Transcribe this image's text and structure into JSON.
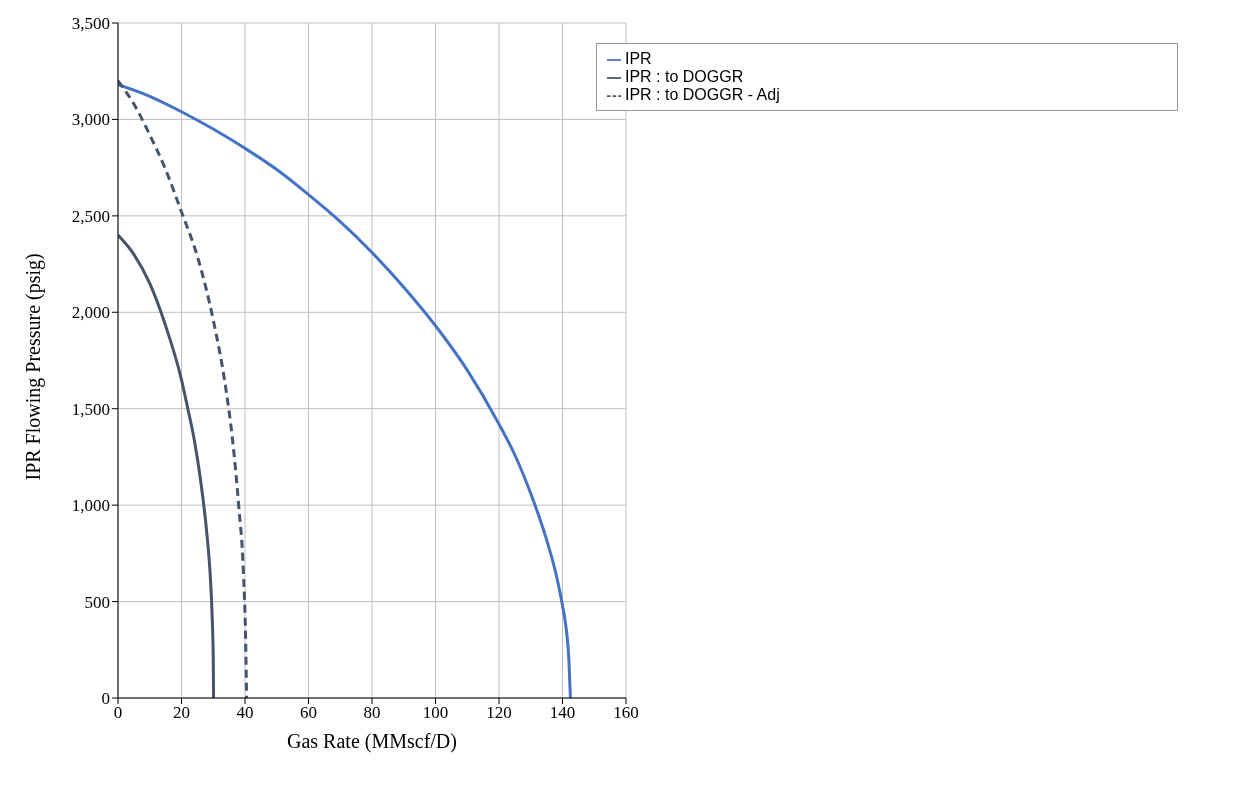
{
  "chart_data": {
    "type": "line",
    "xlabel": "Gas Rate (MMscf/D)",
    "ylabel": "IPR Flowing Pressure (psig)",
    "xlim": [
      0,
      160
    ],
    "xticks": [
      0,
      20,
      40,
      60,
      80,
      100,
      120,
      140,
      160
    ],
    "ylim": [
      0,
      3500
    ],
    "yticks": [
      {
        "value": 0,
        "label": "0"
      },
      {
        "value": 500,
        "label": "500"
      },
      {
        "value": 1000,
        "label": "1,000"
      },
      {
        "value": 1500,
        "label": "1,500"
      },
      {
        "value": 2000,
        "label": "2,000"
      },
      {
        "value": 2500,
        "label": "2,500"
      },
      {
        "value": 3000,
        "label": "3,000"
      },
      {
        "value": 3500,
        "label": "3,500"
      }
    ],
    "grid": true,
    "legend": "top right",
    "marker": "none",
    "series": [
      {
        "name": "IPR",
        "color": "#4472c4",
        "line_style": "solid",
        "x": [
          0,
          10,
          20,
          30,
          40,
          50,
          60,
          70,
          80,
          90,
          100,
          110,
          120,
          125,
          130,
          135,
          138,
          140,
          141,
          142,
          142.5
        ],
        "values": [
          3180,
          3120,
          3040,
          2950,
          2850,
          2740,
          2610,
          2470,
          2310,
          2130,
          1930,
          1700,
          1420,
          1260,
          1060,
          820,
          640,
          480,
          380,
          200,
          0
        ]
      },
      {
        "name": "IPR : to DOGGR",
        "color": "#44546a",
        "line_style": "solid",
        "x": [
          0,
          5,
          10,
          15,
          20,
          22,
          24,
          26,
          28,
          29,
          29.7,
          30,
          30.1
        ],
        "values": [
          2400,
          2300,
          2150,
          1930,
          1650,
          1500,
          1340,
          1130,
          850,
          650,
          400,
          200,
          0
        ]
      },
      {
        "name": "IPR : to DOGGR - Adj",
        "color": "#44546a",
        "line_style": "dashed",
        "x": [
          0,
          5,
          10,
          15,
          20,
          25,
          30,
          34,
          36,
          38,
          39.5,
          40.2,
          40.5
        ],
        "values": [
          3200,
          3080,
          2920,
          2740,
          2520,
          2290,
          1960,
          1600,
          1350,
          1000,
          650,
          300,
          0
        ]
      }
    ]
  }
}
